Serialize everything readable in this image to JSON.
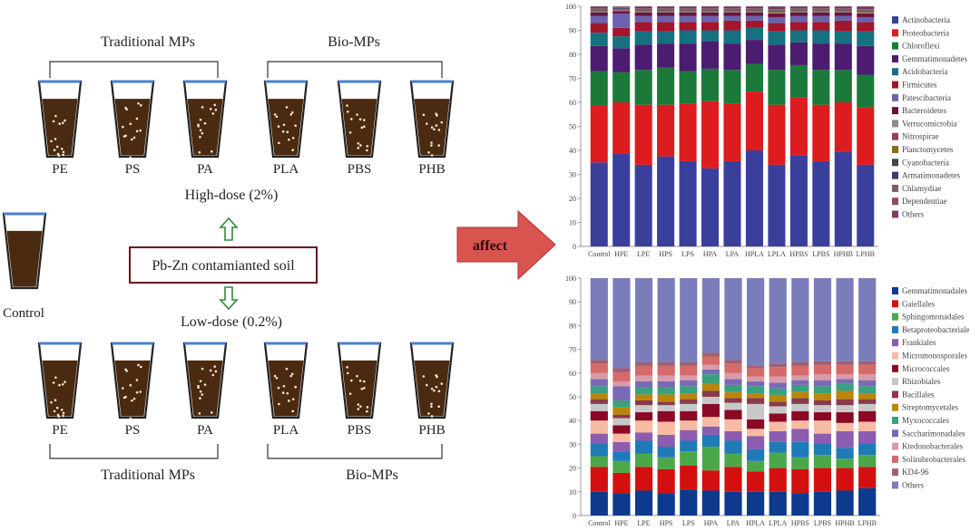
{
  "diagram": {
    "top_group_labels": {
      "traditional": "Traditional MPs",
      "bio": "Bio-MPs"
    },
    "bottom_group_labels": {
      "traditional": "Traditional MPs",
      "bio": "Bio-MPs"
    },
    "top_cups": [
      "PE",
      "PS",
      "PA",
      "PLA",
      "PBS",
      "PHB"
    ],
    "bottom_cups": [
      "PE",
      "PS",
      "PA",
      "PLA",
      "PBS",
      "PHB"
    ],
    "high_dose": "High-dose (2%)",
    "low_dose": "Low-dose (0.2%)",
    "soil_box": "Pb-Zn contamianted soil",
    "control": "Control",
    "affect_arrow": "affect",
    "colors": {
      "soil": "#4a2a10",
      "rim": "#4a7fd0",
      "dose_arrow": "#2e8b3a",
      "box_border": "#6b1020",
      "affect": "#d9534f"
    }
  },
  "chart_data": [
    {
      "type": "bar",
      "stacked": true,
      "title": "",
      "xlabel": "",
      "ylabel": "",
      "ylim": [
        0,
        100
      ],
      "yticks": [
        "0",
        "10",
        "20",
        "30",
        "40",
        "50",
        "60",
        "70",
        "80",
        "90",
        "100"
      ],
      "legend_position": "right",
      "categories": [
        "Control",
        "HPE",
        "LPE",
        "HPS",
        "LPS",
        "HPA",
        "LPA",
        "HPLA",
        "LPLA",
        "HPBS",
        "LPBS",
        "HPHB",
        "LPHB"
      ],
      "series_names": [
        "Actinobacteria",
        "Proteobacteria",
        "Chloroflexi",
        "Gemmatimonadetes",
        "Acidobacteria",
        "Firmicutes",
        "Patescibacteria",
        "Bacteroidetes",
        "Verrucomicrobia",
        "Nitrospirae",
        "Planctomycetes",
        "Cyanobacteria",
        "Armatimonadetes",
        "Chlamydiae",
        "Dependentiae",
        "Others"
      ],
      "colors": [
        "#3b3f9c",
        "#dd1c1f",
        "#1b7a3a",
        "#4b1c70",
        "#17707f",
        "#a3162e",
        "#6b63ae",
        "#6a1140",
        "#8c8c8c",
        "#9c3d5c",
        "#8a6a1e",
        "#454545",
        "#3d3d6b",
        "#7a6060",
        "#8c4a6a",
        "#7a3d6a"
      ],
      "values": [
        [
          35,
          23.5,
          14.5,
          10.5,
          5.5,
          4,
          3,
          1.5,
          0.25,
          0.25,
          0.25,
          0.25,
          0.25,
          0.25,
          0.25,
          0.75
        ],
        [
          38.5,
          21.5,
          12.5,
          10,
          5,
          3.5,
          6,
          1,
          0.25,
          0.25,
          0.25,
          0.25,
          0.25,
          0.25,
          0.25,
          0.25
        ],
        [
          34,
          25,
          14.5,
          10.5,
          5.5,
          4,
          2.5,
          1.5,
          0.25,
          0.25,
          0.25,
          0.25,
          0.25,
          0.25,
          0.25,
          0.75
        ],
        [
          37.5,
          21.5,
          15.5,
          10,
          5,
          4,
          2.5,
          1.5,
          0.25,
          0.25,
          0.25,
          0.25,
          0.25,
          0.25,
          0.25,
          0.75
        ],
        [
          35.5,
          24,
          13.5,
          11.5,
          5.5,
          3.5,
          2.5,
          1.5,
          0.25,
          0.25,
          0.25,
          0.25,
          0.25,
          0.25,
          0.25,
          0.75
        ],
        [
          32.5,
          28,
          13.5,
          11.5,
          4.5,
          3.5,
          2.5,
          1.5,
          0.25,
          0.25,
          0.25,
          0.25,
          0.25,
          0.25,
          0.25,
          0.75
        ],
        [
          35.5,
          24,
          14,
          11,
          5.5,
          4,
          2,
          1.5,
          0.25,
          0.25,
          0.25,
          0.25,
          0.25,
          0.25,
          0.25,
          0.75
        ],
        [
          40,
          24.5,
          11.5,
          10,
          5,
          3,
          2,
          1.5,
          0.25,
          0.25,
          0.25,
          0.25,
          0.25,
          0.25,
          0.25,
          0.75
        ],
        [
          34,
          25,
          14.5,
          10.5,
          5.5,
          3.5,
          2.5,
          1.5,
          0.25,
          0.25,
          0.25,
          0.25,
          0.25,
          0.25,
          0.25,
          1.25
        ],
        [
          38,
          24,
          13.5,
          9.5,
          5,
          3.5,
          2.5,
          1.5,
          0.25,
          0.25,
          0.25,
          0.25,
          0.25,
          0.25,
          0.25,
          0.75
        ],
        [
          35.5,
          23.5,
          14.5,
          11,
          5.5,
          3.5,
          2.5,
          1.5,
          0.25,
          0.25,
          0.25,
          0.25,
          0.25,
          0.25,
          0.25,
          0.75
        ],
        [
          39.5,
          20.5,
          13.5,
          11,
          5,
          4.5,
          2,
          1.5,
          0.25,
          0.25,
          0.25,
          0.25,
          0.25,
          0.25,
          0.25,
          0.75
        ],
        [
          34,
          24,
          13.5,
          12,
          6,
          4,
          2,
          1.5,
          0.25,
          0.25,
          0.25,
          0.25,
          0.25,
          0.25,
          0.25,
          1.25
        ]
      ]
    },
    {
      "type": "bar",
      "stacked": true,
      "title": "",
      "xlabel": "",
      "ylabel": "",
      "ylim": [
        0,
        100
      ],
      "yticks": [
        "0",
        "10",
        "20",
        "30",
        "40",
        "50",
        "60",
        "70",
        "80",
        "90",
        "100"
      ],
      "legend_position": "right",
      "categories": [
        "Control",
        "HPE",
        "LPE",
        "HPS",
        "LPS",
        "HPA",
        "LPA",
        "HPLA",
        "LPLA",
        "HPBS",
        "LPBS",
        "HPHB",
        "LPHB"
      ],
      "series_names": [
        "Gemmatimonadales",
        "Gaiellales",
        "Sphingomonadales",
        "Betaproteobacteriale",
        "Frankiales",
        "Micromonosporales",
        "Micrococcales",
        "Rhizobiales",
        "Bacillales",
        "Streptomycetales",
        "Myxococcales",
        "Saccharimonadales",
        "Ktedonobacterales",
        "Solirubrobacterales",
        "KD4-96",
        "Others"
      ],
      "colors": [
        "#0d3a8c",
        "#d40f0f",
        "#4aa84a",
        "#1f7ab8",
        "#8c5cb0",
        "#f7bba3",
        "#8a0a26",
        "#c8c8c8",
        "#8a3a4a",
        "#b8860b",
        "#3aa080",
        "#7a6ab5",
        "#d89aa8",
        "#d46a6a",
        "#a06070",
        "#7b7cba"
      ],
      "values": [
        [
          10,
          10.5,
          4.5,
          5.5,
          4,
          5.5,
          4,
          3,
          2,
          2.5,
          3,
          3,
          2.5,
          4,
          1.5,
          34.5
        ],
        [
          9.5,
          8.5,
          5,
          4,
          4,
          3.5,
          3.5,
          3,
          1.5,
          3,
          3,
          6,
          2,
          4,
          1.5,
          38
        ],
        [
          10.5,
          10,
          5.5,
          5.5,
          3.5,
          5,
          3.5,
          3,
          2,
          2.5,
          3,
          2.5,
          2.5,
          4,
          1.5,
          35.5
        ],
        [
          9.5,
          10,
          5,
          4.5,
          5,
          5.5,
          4.5,
          2.5,
          1.5,
          3,
          3,
          2.5,
          2.5,
          4,
          1.5,
          35.5
        ],
        [
          11,
          10,
          6,
          4.5,
          4.5,
          4,
          4,
          3,
          2,
          2.5,
          3,
          2.5,
          2,
          4,
          1.5,
          35.5
        ],
        [
          10.5,
          8.5,
          10,
          5,
          3.5,
          4,
          5.5,
          3,
          2.5,
          3,
          4,
          2,
          2,
          3.5,
          1.5,
          31.5
        ],
        [
          10,
          10.5,
          5.5,
          5.5,
          4,
          5,
          4,
          3,
          2,
          2.5,
          3,
          2.5,
          2.5,
          4,
          1.5,
          34.5
        ],
        [
          10,
          8.5,
          4.5,
          5,
          5.5,
          3,
          4,
          6.5,
          2.5,
          2,
          3,
          2,
          2,
          3.5,
          1,
          37
        ],
        [
          10,
          10,
          6.5,
          4.5,
          4.5,
          4,
          3.5,
          3,
          2,
          2.5,
          3,
          2.5,
          2.5,
          4,
          1.5,
          36
        ],
        [
          9.5,
          10,
          5,
          6.5,
          5.5,
          3.5,
          4,
          3,
          2.5,
          2.5,
          3,
          2,
          2,
          4,
          1.5,
          35.5
        ],
        [
          10,
          10,
          5.5,
          5,
          4,
          5.5,
          3.5,
          3,
          2,
          3,
          3,
          2.5,
          2.5,
          4,
          1.5,
          35
        ],
        [
          10.5,
          9.5,
          4,
          4.5,
          7,
          3.5,
          4.5,
          3,
          2.5,
          3.5,
          3,
          2,
          2,
          4,
          1.5,
          35
        ],
        [
          11.5,
          9,
          5,
          5,
          5,
          4,
          4.5,
          3,
          2,
          2.5,
          3,
          2.5,
          2.5,
          4,
          1.5,
          35
        ]
      ]
    }
  ]
}
